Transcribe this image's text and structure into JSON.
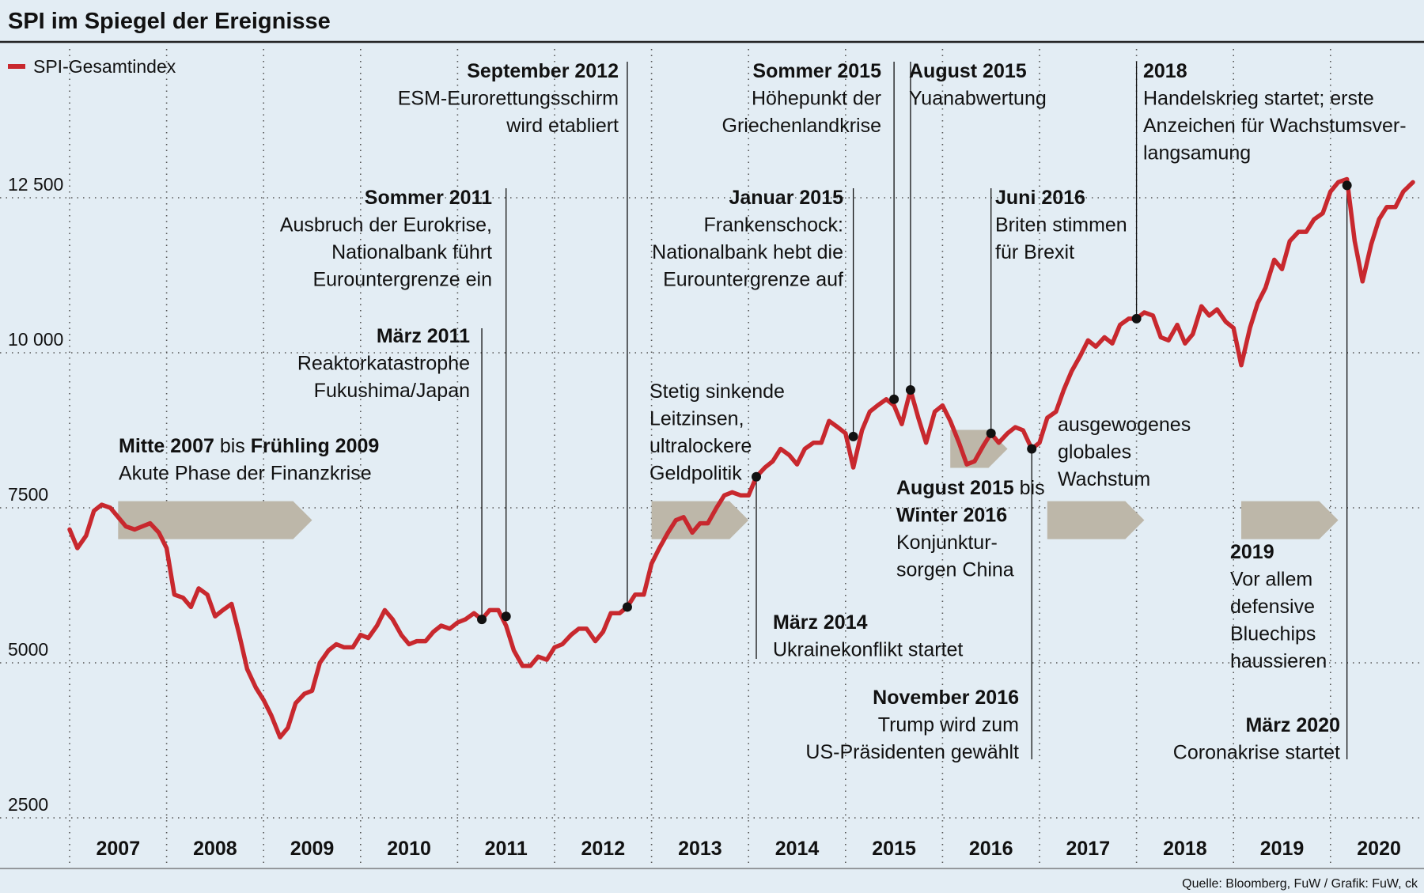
{
  "header": {
    "title": "SPI im Spiegel der Ereignisse"
  },
  "legend": {
    "label": "SPI-Gesamtindex",
    "color": "#c8282e"
  },
  "footer": {
    "source": "Quelle: Bloomberg, FuW / Grafik: FuW, ck"
  },
  "colors": {
    "background": "#e3edf4",
    "line": "#c8282e",
    "arrow": "#bdb7a9",
    "text": "#111111"
  },
  "chart_data": {
    "type": "line",
    "title": "SPI im Spiegel der Ereignisse",
    "xlabel": "",
    "ylabel": "",
    "ylim": [
      2000,
      15000
    ],
    "xlim": [
      2007.0,
      2020.85
    ],
    "grid": true,
    "legend_position": "top-left",
    "y_ticks": [
      {
        "value": 2500,
        "label": "2500"
      },
      {
        "value": 5000,
        "label": "5000"
      },
      {
        "value": 7500,
        "label": "7500"
      },
      {
        "value": 10000,
        "label": "10 000"
      },
      {
        "value": 12500,
        "label": "12 500"
      }
    ],
    "x_labels": [
      {
        "year": 2007,
        "label": "2007"
      },
      {
        "year": 2008,
        "label": "2008"
      },
      {
        "year": 2009,
        "label": "2009"
      },
      {
        "year": 2010,
        "label": "2010"
      },
      {
        "year": 2011,
        "label": "2011"
      },
      {
        "year": 2012,
        "label": "2012"
      },
      {
        "year": 2013,
        "label": "2013"
      },
      {
        "year": 2014,
        "label": "2014"
      },
      {
        "year": 2015,
        "label": "2015"
      },
      {
        "year": 2016,
        "label": "2016"
      },
      {
        "year": 2017,
        "label": "2017"
      },
      {
        "year": 2018,
        "label": "2018"
      },
      {
        "year": 2019,
        "label": "2019"
      },
      {
        "year": 2020,
        "label": "2020"
      }
    ],
    "series": [
      {
        "name": "SPI-Gesamtindex",
        "points": [
          [
            2007.0,
            7150
          ],
          [
            2007.08,
            6850
          ],
          [
            2007.17,
            7050
          ],
          [
            2007.25,
            7450
          ],
          [
            2007.33,
            7550
          ],
          [
            2007.42,
            7500
          ],
          [
            2007.5,
            7350
          ],
          [
            2007.58,
            7200
          ],
          [
            2007.67,
            7150
          ],
          [
            2007.75,
            7200
          ],
          [
            2007.83,
            7250
          ],
          [
            2007.92,
            7100
          ],
          [
            2008.0,
            6850
          ],
          [
            2008.08,
            6100
          ],
          [
            2008.17,
            6050
          ],
          [
            2008.25,
            5900
          ],
          [
            2008.33,
            6200
          ],
          [
            2008.42,
            6100
          ],
          [
            2008.5,
            5750
          ],
          [
            2008.58,
            5850
          ],
          [
            2008.67,
            5950
          ],
          [
            2008.75,
            5450
          ],
          [
            2008.83,
            4900
          ],
          [
            2008.92,
            4600
          ],
          [
            2009.0,
            4400
          ],
          [
            2009.08,
            4150
          ],
          [
            2009.17,
            3800
          ],
          [
            2009.25,
            3950
          ],
          [
            2009.33,
            4350
          ],
          [
            2009.42,
            4500
          ],
          [
            2009.5,
            4550
          ],
          [
            2009.58,
            5000
          ],
          [
            2009.67,
            5200
          ],
          [
            2009.75,
            5300
          ],
          [
            2009.83,
            5250
          ],
          [
            2009.92,
            5250
          ],
          [
            2010.0,
            5450
          ],
          [
            2010.08,
            5400
          ],
          [
            2010.17,
            5600
          ],
          [
            2010.25,
            5850
          ],
          [
            2010.33,
            5700
          ],
          [
            2010.42,
            5450
          ],
          [
            2010.5,
            5300
          ],
          [
            2010.58,
            5350
          ],
          [
            2010.67,
            5350
          ],
          [
            2010.75,
            5500
          ],
          [
            2010.83,
            5600
          ],
          [
            2010.92,
            5550
          ],
          [
            2011.0,
            5650
          ],
          [
            2011.08,
            5700
          ],
          [
            2011.17,
            5800
          ],
          [
            2011.25,
            5700
          ],
          [
            2011.33,
            5850
          ],
          [
            2011.42,
            5850
          ],
          [
            2011.5,
            5600
          ],
          [
            2011.58,
            5200
          ],
          [
            2011.67,
            4950
          ],
          [
            2011.75,
            4950
          ],
          [
            2011.83,
            5100
          ],
          [
            2011.92,
            5050
          ],
          [
            2012.0,
            5250
          ],
          [
            2012.08,
            5300
          ],
          [
            2012.17,
            5450
          ],
          [
            2012.25,
            5550
          ],
          [
            2012.33,
            5550
          ],
          [
            2012.42,
            5350
          ],
          [
            2012.5,
            5500
          ],
          [
            2012.58,
            5800
          ],
          [
            2012.67,
            5800
          ],
          [
            2012.75,
            5900
          ],
          [
            2012.83,
            6100
          ],
          [
            2012.92,
            6100
          ],
          [
            2013.0,
            6600
          ],
          [
            2013.08,
            6850
          ],
          [
            2013.17,
            7100
          ],
          [
            2013.25,
            7300
          ],
          [
            2013.33,
            7350
          ],
          [
            2013.42,
            7100
          ],
          [
            2013.5,
            7250
          ],
          [
            2013.58,
            7250
          ],
          [
            2013.67,
            7500
          ],
          [
            2013.75,
            7700
          ],
          [
            2013.83,
            7750
          ],
          [
            2013.92,
            7700
          ],
          [
            2014.0,
            7700
          ],
          [
            2014.08,
            8000
          ],
          [
            2014.17,
            8150
          ],
          [
            2014.25,
            8250
          ],
          [
            2014.33,
            8450
          ],
          [
            2014.42,
            8350
          ],
          [
            2014.5,
            8200
          ],
          [
            2014.58,
            8450
          ],
          [
            2014.67,
            8550
          ],
          [
            2014.75,
            8550
          ],
          [
            2014.83,
            8900
          ],
          [
            2014.92,
            8800
          ],
          [
            2015.0,
            8700
          ],
          [
            2015.08,
            8150
          ],
          [
            2015.17,
            8750
          ],
          [
            2015.25,
            9050
          ],
          [
            2015.33,
            9150
          ],
          [
            2015.42,
            9250
          ],
          [
            2015.5,
            9150
          ],
          [
            2015.58,
            8850
          ],
          [
            2015.67,
            9400
          ],
          [
            2015.75,
            8950
          ],
          [
            2015.83,
            8550
          ],
          [
            2015.92,
            9050
          ],
          [
            2016.0,
            9150
          ],
          [
            2016.08,
            8900
          ],
          [
            2016.17,
            8550
          ],
          [
            2016.25,
            8200
          ],
          [
            2016.33,
            8250
          ],
          [
            2016.42,
            8500
          ],
          [
            2016.5,
            8700
          ],
          [
            2016.58,
            8550
          ],
          [
            2016.67,
            8700
          ],
          [
            2016.75,
            8800
          ],
          [
            2016.83,
            8750
          ],
          [
            2016.92,
            8450
          ],
          [
            2017.0,
            8550
          ],
          [
            2017.08,
            8950
          ],
          [
            2017.17,
            9050
          ],
          [
            2017.25,
            9400
          ],
          [
            2017.33,
            9700
          ],
          [
            2017.42,
            9950
          ],
          [
            2017.5,
            10200
          ],
          [
            2017.58,
            10100
          ],
          [
            2017.67,
            10250
          ],
          [
            2017.75,
            10150
          ],
          [
            2017.83,
            10450
          ],
          [
            2017.92,
            10550
          ],
          [
            2018.0,
            10550
          ],
          [
            2018.08,
            10650
          ],
          [
            2018.17,
            10600
          ],
          [
            2018.25,
            10250
          ],
          [
            2018.33,
            10200
          ],
          [
            2018.42,
            10450
          ],
          [
            2018.5,
            10150
          ],
          [
            2018.58,
            10300
          ],
          [
            2018.67,
            10750
          ],
          [
            2018.75,
            10600
          ],
          [
            2018.83,
            10700
          ],
          [
            2018.92,
            10500
          ],
          [
            2019.0,
            10400
          ],
          [
            2019.08,
            9800
          ],
          [
            2019.17,
            10400
          ],
          [
            2019.25,
            10800
          ],
          [
            2019.33,
            11050
          ],
          [
            2019.42,
            11500
          ],
          [
            2019.5,
            11350
          ],
          [
            2019.58,
            11800
          ],
          [
            2019.67,
            11950
          ],
          [
            2019.75,
            11950
          ],
          [
            2019.83,
            12150
          ],
          [
            2019.92,
            12250
          ],
          [
            2020.0,
            12600
          ],
          [
            2020.08,
            12750
          ],
          [
            2020.17,
            12800
          ],
          [
            2020.25,
            11800
          ],
          [
            2020.33,
            11150
          ],
          [
            2020.42,
            11750
          ],
          [
            2020.5,
            12150
          ],
          [
            2020.58,
            12350
          ],
          [
            2020.67,
            12350
          ],
          [
            2020.75,
            12600
          ],
          [
            2020.85,
            12750
          ]
        ]
      }
    ],
    "markers": [
      {
        "x": 2011.25,
        "y": 5700
      },
      {
        "x": 2011.5,
        "y": 5750
      },
      {
        "x": 2012.75,
        "y": 5900
      },
      {
        "x": 2014.08,
        "y": 8000
      },
      {
        "x": 2015.08,
        "y": 8650
      },
      {
        "x": 2015.5,
        "y": 9250
      },
      {
        "x": 2015.67,
        "y": 9400
      },
      {
        "x": 2016.5,
        "y": 8700
      },
      {
        "x": 2016.92,
        "y": 8450
      },
      {
        "x": 2018.0,
        "y": 10550
      },
      {
        "x": 2020.17,
        "y": 12700
      }
    ],
    "periods": [
      {
        "x0": 2007.5,
        "x1": 2009.5,
        "y": 7300
      },
      {
        "x0": 2013.0,
        "x1": 2014.0,
        "y": 7300
      },
      {
        "x0": 2016.08,
        "x1": 2016.67,
        "y": 8450
      },
      {
        "x0": 2017.08,
        "x1": 2018.08,
        "y": 7300
      },
      {
        "x0": 2019.08,
        "x1": 2020.08,
        "y": 7300
      }
    ],
    "annotations": [
      {
        "id": "crisis",
        "bold": "Mitte 2007",
        "mid": " bis ",
        "bold2": "Frühling 2009",
        "lines": [
          "Akute Phase der Finanzkrise"
        ]
      },
      {
        "id": "fukushima",
        "bold": "März 2011",
        "lines": [
          "Reaktorkatastrophe",
          "Fukushima/Japan"
        ]
      },
      {
        "id": "eurokrise",
        "bold": "Sommer 2011",
        "lines": [
          "Ausbruch der Eurokrise,",
          "Nationalbank führt",
          "Euro­untergrenze ein"
        ]
      },
      {
        "id": "esm",
        "bold": "September 2012",
        "lines": [
          "ESM-Eurorettungsschirm",
          "wird etabliert"
        ]
      },
      {
        "id": "zinsen",
        "bold": "",
        "lines": [
          "Stetig sinkende",
          "Leitzinsen,",
          "ultralockere",
          "Geldpolitik"
        ]
      },
      {
        "id": "ukraine",
        "bold": "März 2014",
        "lines": [
          "Ukrainekonflikt startet"
        ]
      },
      {
        "id": "franken",
        "bold": "Januar 2015",
        "lines": [
          "Frankenschock:",
          "Nationalbank hebt die",
          "Euro­untergrenze auf"
        ]
      },
      {
        "id": "griechen",
        "bold": "Sommer 2015",
        "lines": [
          "Höhepunkt der",
          "Griechenlandkrise"
        ]
      },
      {
        "id": "yuan",
        "bold": "August 2015",
        "lines": [
          "Yuanabwertung"
        ]
      },
      {
        "id": "china",
        "bold": "August 2015",
        "mid": " bis",
        "bold2": "Winter 2016",
        "lines": [
          "Konjunktur-",
          "sorgen China"
        ]
      },
      {
        "id": "brexit",
        "bold": "Juni 2016",
        "lines": [
          "Briten stimmen",
          "für Brexit"
        ]
      },
      {
        "id": "trump",
        "bold": "November 2016",
        "lines": [
          "Trump wird zum",
          "US-Präsidenten gewählt"
        ]
      },
      {
        "id": "wachstum",
        "bold": "",
        "lines": [
          "ausgewogenes",
          "globales",
          "Wachstum"
        ]
      },
      {
        "id": "handel",
        "bold": "2018",
        "lines": [
          "Handelskrieg startet; erste",
          "Anzeichen für Wachstumsver-",
          "langsamung"
        ]
      },
      {
        "id": "bluechips",
        "bold": "2019",
        "lines": [
          "Vor allem",
          "defensive",
          "Bluechips",
          "haussieren"
        ]
      },
      {
        "id": "corona",
        "bold": "März 2020",
        "lines": [
          "Coronakrise startet"
        ]
      }
    ]
  }
}
